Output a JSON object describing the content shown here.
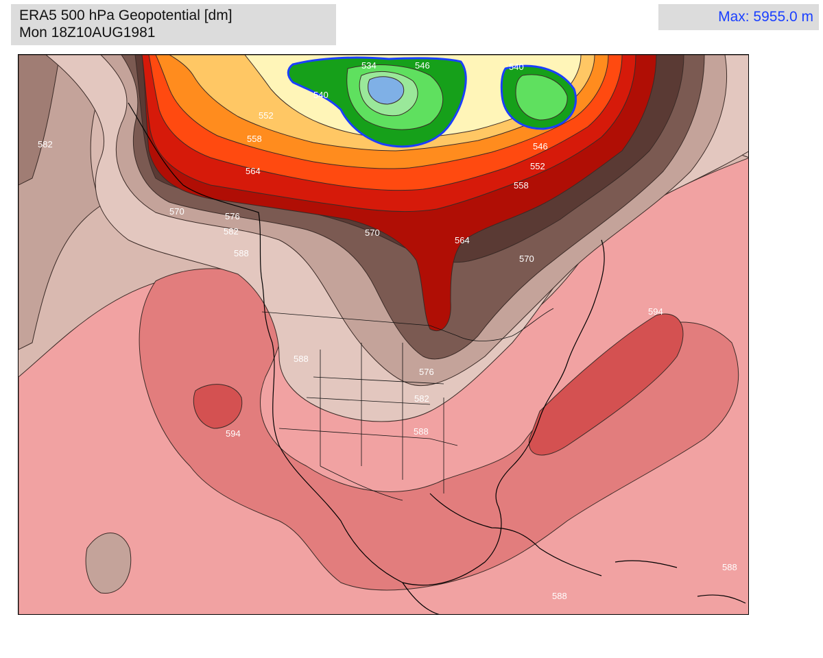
{
  "header": {
    "title_line1": "ERA5 500 hPa Geopotential [dm]",
    "title_line2": "Mon 18Z10AUG1981",
    "max_label": "Max: 5955.0 m"
  },
  "map": {
    "contour_labels": [
      "582",
      "534",
      "546",
      "540",
      "540",
      "552",
      "558",
      "564",
      "570",
      "576",
      "582",
      "588",
      "570",
      "564",
      "570",
      "546",
      "552",
      "558",
      "594",
      "588",
      "576",
      "582",
      "588",
      "594",
      "588",
      "588"
    ],
    "colors": {
      "deep_low": "#7fb0e6",
      "low_green": "#16a01a",
      "light_green": "#5fe05f",
      "pale_yellow": "#fff5b8",
      "light_orange": "#ffc764",
      "orange": "#ff8c1e",
      "red_orange": "#ff4a10",
      "red": "#d61a0a",
      "dark_red": "#b00e05",
      "dark_brown": "#5a3a34",
      "brown": "#7b5a52",
      "mid_brown": "#a07d74",
      "light_brown": "#c4a39a",
      "pale_brown": "#e3c7bf",
      "pink": "#f1a2a2",
      "salmon": "#e27d7d",
      "deep_salmon": "#d45151"
    }
  }
}
